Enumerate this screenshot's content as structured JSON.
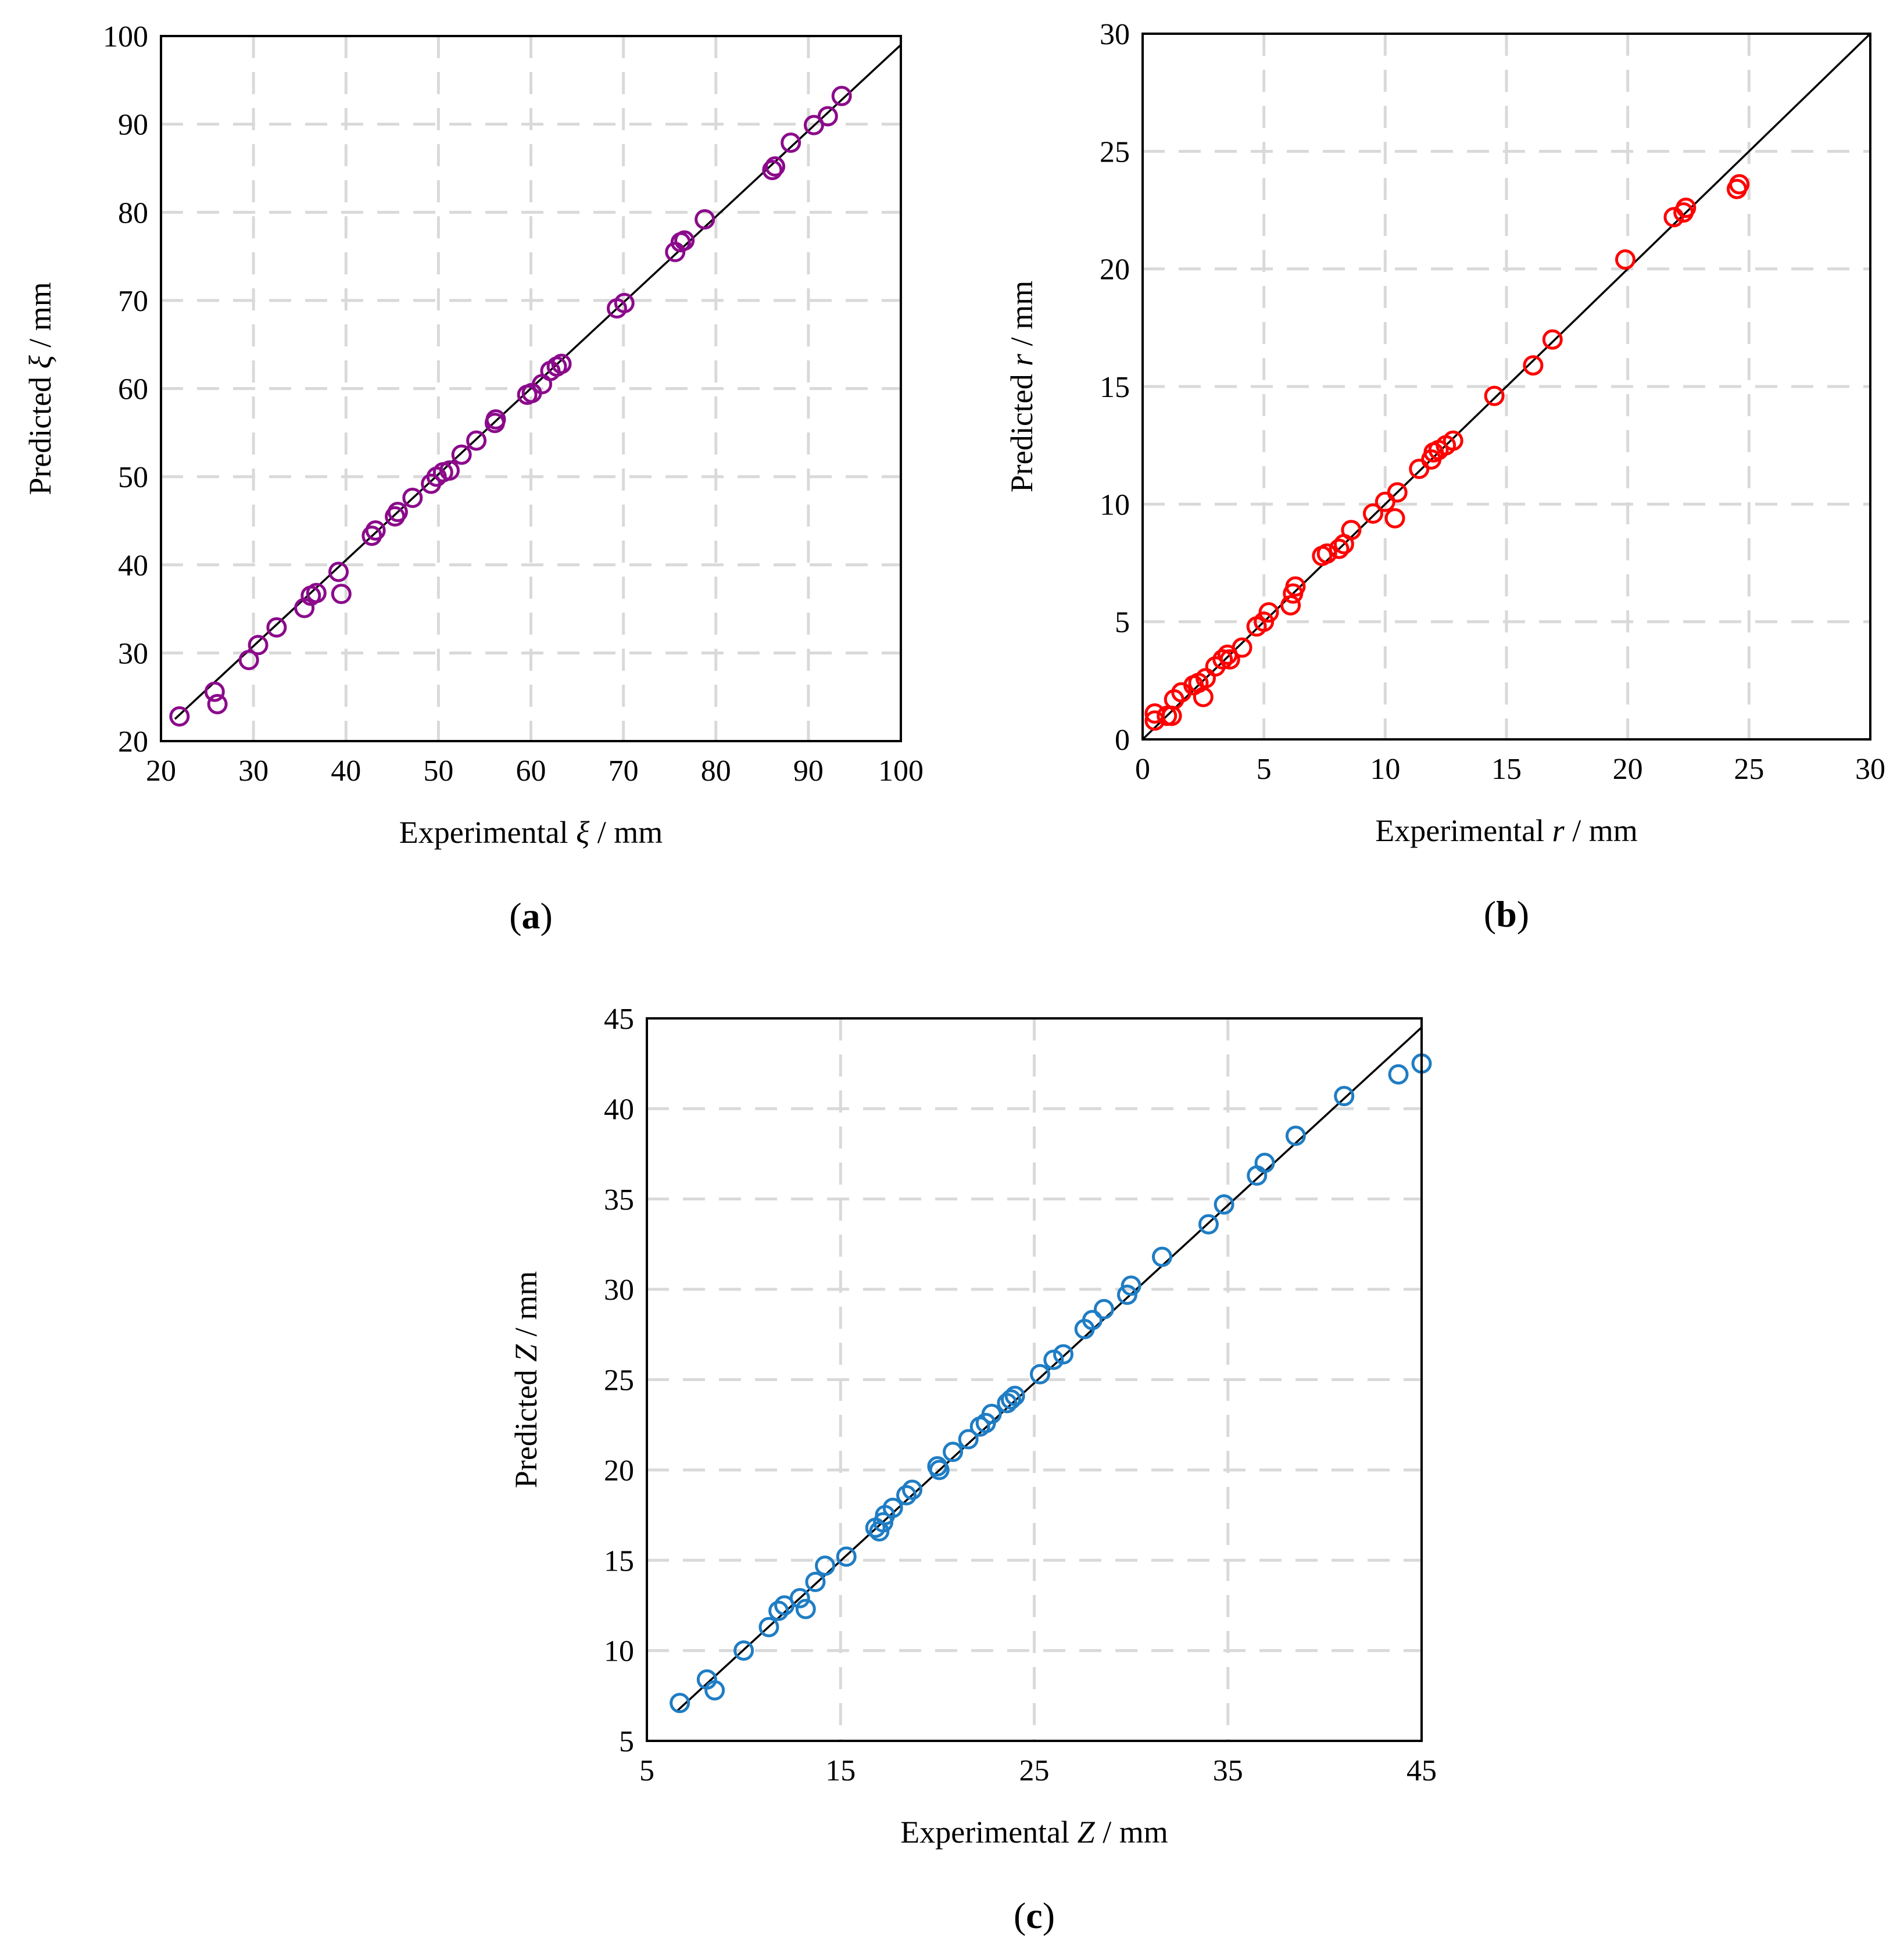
{
  "chart_data": [
    {
      "type": "scatter",
      "panel_label": "a",
      "xlabel_prefix": "Experimental ",
      "xlabel_symbol": "ξ",
      "xlabel_suffix": " / mm",
      "ylabel_prefix": "Predicted ",
      "ylabel_symbol": "ξ",
      "ylabel_suffix": " / mm",
      "xlim": [
        20,
        100
      ],
      "ylim": [
        20,
        100
      ],
      "xticks": [
        20,
        30,
        40,
        50,
        60,
        70,
        80,
        90,
        100
      ],
      "yticks": [
        20,
        30,
        40,
        50,
        60,
        70,
        80,
        90,
        100
      ],
      "grid": true,
      "marker": "open-circle",
      "color": "#8B0A8B",
      "reference_line": [
        [
          21.5,
          22.5
        ],
        [
          100,
          99
        ]
      ],
      "x": [
        22,
        25.8,
        26.1,
        29.5,
        30.5,
        32.5,
        35.5,
        36.2,
        36.8,
        39.2,
        39.5,
        42.8,
        43.2,
        45.3,
        45.6,
        47.2,
        49.2,
        49.8,
        50.5,
        51.2,
        52.5,
        54.1,
        56.1,
        56.2,
        59.6,
        60.1,
        61.2,
        62.1,
        62.8,
        63.3,
        69.3,
        70.1,
        75.6,
        76.2,
        76.6,
        78.8,
        86.1,
        86.4,
        88.1,
        90.6,
        92.1,
        93.6
      ],
      "y": [
        22.8,
        25.6,
        24.2,
        29.2,
        30.9,
        32.9,
        35.1,
        36.5,
        36.8,
        39.2,
        36.7,
        43.3,
        43.9,
        45.5,
        46.0,
        47.6,
        49.2,
        50.0,
        50.5,
        50.7,
        52.5,
        54.1,
        56.1,
        56.5,
        59.3,
        59.5,
        60.5,
        62.0,
        62.5,
        62.8,
        69.1,
        69.7,
        75.5,
        76.6,
        76.8,
        79.2,
        84.8,
        85.2,
        87.9,
        89.9,
        90.9,
        93.2
      ]
    },
    {
      "type": "scatter",
      "panel_label": "b",
      "xlabel_prefix": "Experimental ",
      "xlabel_symbol": "r",
      "xlabel_suffix": " / mm",
      "ylabel_prefix": "Predicted ",
      "ylabel_symbol": "r",
      "ylabel_suffix": " / mm",
      "xlim": [
        0,
        30
      ],
      "ylim": [
        0,
        30
      ],
      "xticks": [
        0,
        5,
        10,
        15,
        20,
        25,
        30
      ],
      "yticks": [
        0,
        5,
        10,
        15,
        20,
        25,
        30
      ],
      "grid": true,
      "marker": "open-circle",
      "color": "#FF0000",
      "reference_line": [
        [
          0,
          0
        ],
        [
          30,
          30
        ]
      ],
      "x": [
        0.5,
        0.5,
        1.0,
        1.2,
        1.3,
        1.6,
        2.1,
        2.3,
        2.5,
        2.6,
        3.0,
        3.3,
        3.5,
        3.6,
        4.1,
        4.7,
        5.0,
        5.2,
        6.1,
        6.2,
        6.3,
        7.4,
        7.6,
        8.1,
        8.3,
        8.6,
        9.5,
        10.0,
        10.4,
        10.5,
        11.4,
        11.9,
        12.0,
        12.2,
        12.5,
        12.8,
        14.5,
        16.1,
        16.9,
        19.9,
        21.9,
        22.3,
        22.4,
        24.5,
        24.6
      ],
      "y": [
        0.8,
        1.1,
        1.0,
        1.0,
        1.7,
        2.0,
        2.3,
        2.4,
        1.8,
        2.6,
        3.1,
        3.4,
        3.6,
        3.4,
        3.9,
        4.8,
        5.0,
        5.4,
        5.7,
        6.2,
        6.5,
        7.8,
        7.9,
        8.1,
        8.3,
        8.9,
        9.6,
        10.1,
        9.4,
        10.5,
        11.5,
        11.9,
        12.2,
        12.3,
        12.5,
        12.7,
        14.6,
        15.9,
        17.0,
        20.4,
        22.2,
        22.4,
        22.6,
        23.4,
        23.6
      ]
    },
    {
      "type": "scatter",
      "panel_label": "c",
      "xlabel_prefix": "Experimental ",
      "xlabel_symbol": "Z",
      "xlabel_suffix": " / mm",
      "ylabel_prefix": "Predicted ",
      "ylabel_symbol": "Z",
      "ylabel_suffix": " / mm",
      "xlim": [
        5,
        45
      ],
      "ylim": [
        5,
        45
      ],
      "xticks": [
        5,
        15,
        25,
        35,
        45
      ],
      "yticks": [
        5,
        10,
        15,
        20,
        25,
        30,
        35,
        40,
        45
      ],
      "grid": true,
      "marker": "open-circle",
      "color": "#1F7DC4",
      "reference_line": [
        [
          6.5,
          6.6
        ],
        [
          45,
          44.5
        ]
      ],
      "x": [
        6.7,
        8.1,
        8.5,
        10.0,
        11.3,
        11.8,
        12.1,
        12.9,
        13.2,
        13.7,
        14.2,
        15.3,
        16.8,
        17.0,
        17.2,
        17.3,
        17.7,
        18.4,
        18.7,
        20.0,
        20.1,
        20.8,
        21.6,
        22.2,
        22.5,
        22.8,
        23.6,
        23.8,
        24.0,
        25.3,
        26.0,
        26.5,
        27.6,
        28.0,
        28.6,
        29.8,
        30.0,
        31.6,
        34.0,
        34.8,
        36.5,
        36.9,
        38.5,
        41.0,
        43.8,
        45.0
      ],
      "y": [
        7.1,
        8.4,
        7.8,
        10.0,
        11.3,
        12.2,
        12.5,
        12.9,
        12.3,
        13.8,
        14.7,
        15.2,
        16.8,
        16.6,
        17.1,
        17.5,
        17.9,
        18.6,
        18.9,
        20.2,
        20.0,
        21.0,
        21.7,
        22.4,
        22.6,
        23.1,
        23.7,
        23.9,
        24.1,
        25.3,
        26.1,
        26.4,
        27.8,
        28.3,
        28.9,
        29.7,
        30.2,
        31.8,
        33.6,
        34.7,
        36.3,
        37.0,
        38.5,
        40.7,
        41.9,
        42.5
      ]
    }
  ]
}
